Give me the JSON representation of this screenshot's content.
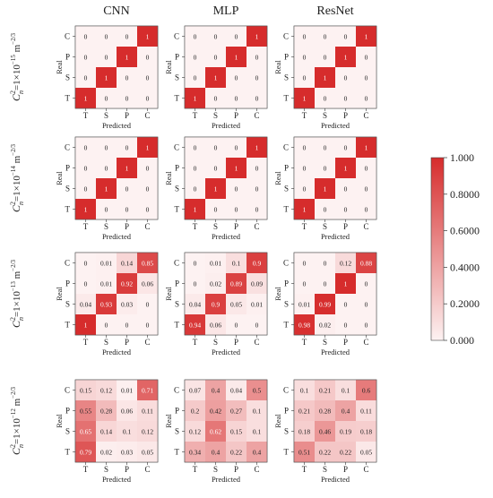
{
  "figure": {
    "columns": [
      "CNN",
      "MLP",
      "ResNet"
    ],
    "rows": [
      {
        "prefix": "C",
        "sup": "2",
        "sub": "n",
        "eq": "=1×10",
        "exp": "−15",
        "unit": "m",
        "unit_exp_num": "2",
        "unit_exp_den": "3"
      },
      {
        "prefix": "C",
        "sup": "2",
        "sub": "n",
        "eq": "=1×10",
        "exp": "−14",
        "unit": "m",
        "unit_exp_num": "2",
        "unit_exp_den": "3"
      },
      {
        "prefix": "C",
        "sup": "2",
        "sub": "n",
        "eq": "=1×10",
        "exp": "−13",
        "unit": "m",
        "unit_exp_num": "2",
        "unit_exp_den": "3"
      },
      {
        "prefix": "C",
        "sup": "2",
        "sub": "n",
        "eq": "=1×10",
        "exp": "−12",
        "unit": "m",
        "unit_exp_num": "2",
        "unit_exp_den": "3"
      }
    ],
    "unit_exp_minus": "−"
  },
  "chart_data": {
    "type": "heatmap",
    "xlabel": "Predicted",
    "ylabel": "Real",
    "x_categories": [
      "T",
      "S",
      "P",
      "C"
    ],
    "y_categories_top_to_bottom": [
      "C",
      "P",
      "S",
      "T"
    ],
    "colorbar": {
      "min": 0,
      "max": 1,
      "ticks": [
        "1.000",
        "0.8000",
        "0.6000",
        "0.4000",
        "0.2000",
        "0.000"
      ],
      "tick_values": [
        1.0,
        0.8,
        0.6,
        0.4,
        0.2,
        0.0
      ],
      "color_low": "#fdf2f2",
      "color_high": "#d62c2c"
    },
    "matrices": [
      [
        {
          "model": "CNN",
          "values": [
            [
              "0",
              "0",
              "0",
              "1"
            ],
            [
              "0",
              "0",
              "1",
              "0"
            ],
            [
              "0",
              "1",
              "0",
              "0"
            ],
            [
              "1",
              "0",
              "0",
              "0"
            ]
          ]
        },
        {
          "model": "MLP",
          "values": [
            [
              "0",
              "0",
              "0",
              "1"
            ],
            [
              "0",
              "0",
              "1",
              "0"
            ],
            [
              "0",
              "1",
              "0",
              "0"
            ],
            [
              "1",
              "0",
              "0",
              "0"
            ]
          ]
        },
        {
          "model": "ResNet",
          "values": [
            [
              "0",
              "0",
              "0",
              "1"
            ],
            [
              "0",
              "0",
              "1",
              "0"
            ],
            [
              "0",
              "1",
              "0",
              "0"
            ],
            [
              "1",
              "0",
              "0",
              "0"
            ]
          ]
        }
      ],
      [
        {
          "model": "CNN",
          "values": [
            [
              "0",
              "0",
              "0",
              "1"
            ],
            [
              "0",
              "0",
              "1",
              "0"
            ],
            [
              "0",
              "1",
              "0",
              "0"
            ],
            [
              "1",
              "0",
              "0",
              "0"
            ]
          ]
        },
        {
          "model": "MLP",
          "values": [
            [
              "0",
              "0",
              "0",
              "1"
            ],
            [
              "0",
              "0",
              "1",
              "0"
            ],
            [
              "0",
              "1",
              "0",
              "0"
            ],
            [
              "1",
              "0",
              "0",
              "0"
            ]
          ]
        },
        {
          "model": "ResNet",
          "values": [
            [
              "0",
              "0",
              "0",
              "1"
            ],
            [
              "0",
              "0",
              "1",
              "0"
            ],
            [
              "0",
              "1",
              "0",
              "0"
            ],
            [
              "1",
              "0",
              "0",
              "0"
            ]
          ]
        }
      ],
      [
        {
          "model": "CNN",
          "values": [
            [
              "0",
              "0.01",
              "0.14",
              "0.85"
            ],
            [
              "0",
              "0.01",
              "0.92",
              "0.06"
            ],
            [
              "0.04",
              "0.93",
              "0.03",
              "0"
            ],
            [
              "1",
              "0",
              "0",
              "0"
            ]
          ]
        },
        {
          "model": "MLP",
          "values": [
            [
              "0",
              "0.01",
              "0.1",
              "0.9"
            ],
            [
              "0",
              "0.02",
              "0.89",
              "0.09"
            ],
            [
              "0.04",
              "0.9",
              "0.05",
              "0.01"
            ],
            [
              "0.94",
              "0.06",
              "0",
              "0"
            ]
          ]
        },
        {
          "model": "ResNet",
          "values": [
            [
              "0",
              "0",
              "0.12",
              "0.88"
            ],
            [
              "0",
              "0",
              "1",
              "0"
            ],
            [
              "0.01",
              "0.99",
              "0",
              "0"
            ],
            [
              "0.98",
              "0.02",
              "0",
              "0"
            ]
          ]
        }
      ],
      [
        {
          "model": "CNN",
          "values": [
            [
              "0.15",
              "0.12",
              "0.01",
              "0.71"
            ],
            [
              "0.55",
              "0.28",
              "0.06",
              "0.11"
            ],
            [
              "0.65",
              "0.14",
              "0.1",
              "0.12"
            ],
            [
              "0.79",
              "0.02",
              "0.03",
              "0.05"
            ]
          ]
        },
        {
          "model": "MLP",
          "values": [
            [
              "0.07",
              "0.4",
              "0.04",
              "0.5"
            ],
            [
              "0.2",
              "0.42",
              "0.27",
              "0.1"
            ],
            [
              "0.12",
              "0.62",
              "0.15",
              "0.1"
            ],
            [
              "0.34",
              "0.4",
              "0.22",
              "0.4"
            ]
          ]
        },
        {
          "model": "ResNet",
          "values": [
            [
              "0.1",
              "0.21",
              "0.1",
              "0.6"
            ],
            [
              "0.21",
              "0.28",
              "0.4",
              "0.11"
            ],
            [
              "0.18",
              "0.46",
              "0.19",
              "0.18"
            ],
            [
              "0.51",
              "0.22",
              "0.22",
              "0.05"
            ]
          ]
        }
      ]
    ]
  }
}
